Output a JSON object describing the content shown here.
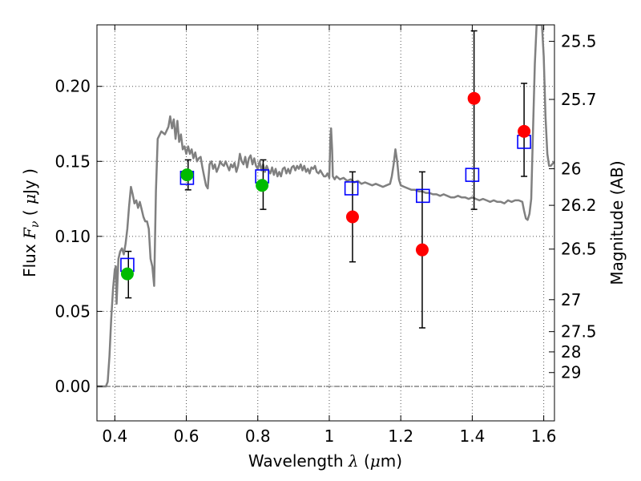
{
  "chart_data": {
    "type": "scatter",
    "title": "",
    "xlabel": "Wavelength  λ (μm)",
    "xlabel_parts": {
      "text": "Wavelength ",
      "lambda": "λ",
      "unit_open": " (",
      "mu": "μ",
      "unit_close": "m)"
    },
    "ylabel": "Flux  Fν  ( μJy )",
    "ylabel_parts": {
      "text": "Flux ",
      "symbol": "F",
      "sub": "ν",
      "open": " ( ",
      "mu": "μ",
      "unit": "Jy )"
    },
    "y2label": "Magnitude (AB)",
    "xlim": [
      0.35,
      1.63
    ],
    "ylim": [
      -0.023,
      0.241
    ],
    "grid": true,
    "x_ticks": [
      0.4,
      0.6,
      0.8,
      1.0,
      1.2,
      1.4,
      1.6
    ],
    "x_tick_labels": [
      "0.4",
      "0.6",
      "0.8",
      "1",
      "1.2",
      "1.4",
      "1.6"
    ],
    "y_ticks": [
      0.0,
      0.05,
      0.1,
      0.15,
      0.2
    ],
    "y_tick_labels": [
      "0.00",
      "0.05",
      "0.10",
      "0.15",
      "0.20"
    ],
    "y2_ticks": [
      {
        "label": "25.5",
        "flux": 0.23
      },
      {
        "label": "25.7",
        "flux": 0.1913
      },
      {
        "label": "26",
        "flux": 0.1451
      },
      {
        "label": "26.2",
        "flux": 0.1207
      },
      {
        "label": "26.5",
        "flux": 0.0915
      },
      {
        "label": "27",
        "flux": 0.0578
      },
      {
        "label": "27.5",
        "flux": 0.0365
      },
      {
        "label": "28",
        "flux": 0.023
      },
      {
        "label": "29",
        "flux": 0.0092
      }
    ],
    "colors": {
      "model": "#808080",
      "open_squares": "#0000ff",
      "green_points": "#00bb00",
      "red_points": "#ff0000",
      "error_bars": "#000000",
      "grid": "#555555"
    },
    "series": [
      {
        "kind": "line",
        "points": [
          [
            0.35,
            0.0
          ],
          [
            0.375,
            0.0
          ],
          [
            0.38,
            0.003
          ],
          [
            0.385,
            0.02
          ],
          [
            0.39,
            0.045
          ],
          [
            0.395,
            0.065
          ],
          [
            0.4,
            0.078
          ],
          [
            0.403,
            0.08
          ],
          [
            0.405,
            0.055
          ],
          [
            0.41,
            0.085
          ],
          [
            0.415,
            0.09
          ],
          [
            0.42,
            0.092
          ],
          [
            0.425,
            0.088
          ],
          [
            0.43,
            0.095
          ],
          [
            0.435,
            0.105
          ],
          [
            0.44,
            0.12
          ],
          [
            0.445,
            0.133
          ],
          [
            0.45,
            0.128
          ],
          [
            0.455,
            0.122
          ],
          [
            0.46,
            0.124
          ],
          [
            0.465,
            0.119
          ],
          [
            0.47,
            0.123
          ],
          [
            0.475,
            0.118
          ],
          [
            0.48,
            0.113
          ],
          [
            0.485,
            0.11
          ],
          [
            0.49,
            0.11
          ],
          [
            0.495,
            0.105
          ],
          [
            0.5,
            0.085
          ],
          [
            0.505,
            0.08
          ],
          [
            0.51,
            0.067
          ],
          [
            0.515,
            0.13
          ],
          [
            0.52,
            0.165
          ],
          [
            0.53,
            0.17
          ],
          [
            0.54,
            0.168
          ],
          [
            0.55,
            0.173
          ],
          [
            0.555,
            0.18
          ],
          [
            0.56,
            0.172
          ],
          [
            0.565,
            0.178
          ],
          [
            0.57,
            0.165
          ],
          [
            0.575,
            0.177
          ],
          [
            0.58,
            0.163
          ],
          [
            0.585,
            0.168
          ],
          [
            0.59,
            0.158
          ],
          [
            0.595,
            0.16
          ],
          [
            0.6,
            0.155
          ],
          [
            0.605,
            0.16
          ],
          [
            0.61,
            0.155
          ],
          [
            0.615,
            0.158
          ],
          [
            0.62,
            0.152
          ],
          [
            0.625,
            0.156
          ],
          [
            0.63,
            0.15
          ],
          [
            0.635,
            0.152
          ],
          [
            0.64,
            0.153
          ],
          [
            0.645,
            0.146
          ],
          [
            0.65,
            0.14
          ],
          [
            0.655,
            0.134
          ],
          [
            0.66,
            0.132
          ],
          [
            0.665,
            0.148
          ],
          [
            0.67,
            0.15
          ],
          [
            0.675,
            0.145
          ],
          [
            0.68,
            0.148
          ],
          [
            0.685,
            0.143
          ],
          [
            0.69,
            0.146
          ],
          [
            0.695,
            0.15
          ],
          [
            0.7,
            0.148
          ],
          [
            0.705,
            0.147
          ],
          [
            0.71,
            0.15
          ],
          [
            0.715,
            0.147
          ],
          [
            0.72,
            0.144
          ],
          [
            0.725,
            0.148
          ],
          [
            0.73,
            0.146
          ],
          [
            0.735,
            0.149
          ],
          [
            0.74,
            0.143
          ],
          [
            0.745,
            0.147
          ],
          [
            0.75,
            0.155
          ],
          [
            0.755,
            0.15
          ],
          [
            0.76,
            0.148
          ],
          [
            0.765,
            0.153
          ],
          [
            0.77,
            0.146
          ],
          [
            0.775,
            0.152
          ],
          [
            0.78,
            0.154
          ],
          [
            0.785,
            0.148
          ],
          [
            0.79,
            0.152
          ],
          [
            0.795,
            0.147
          ],
          [
            0.8,
            0.145
          ],
          [
            0.805,
            0.15
          ],
          [
            0.81,
            0.144
          ],
          [
            0.815,
            0.148
          ],
          [
            0.82,
            0.143
          ],
          [
            0.825,
            0.147
          ],
          [
            0.83,
            0.144
          ],
          [
            0.835,
            0.142
          ],
          [
            0.84,
            0.146
          ],
          [
            0.845,
            0.141
          ],
          [
            0.85,
            0.145
          ],
          [
            0.855,
            0.14
          ],
          [
            0.86,
            0.143
          ],
          [
            0.865,
            0.14
          ],
          [
            0.87,
            0.145
          ],
          [
            0.875,
            0.146
          ],
          [
            0.88,
            0.142
          ],
          [
            0.885,
            0.145
          ],
          [
            0.89,
            0.142
          ],
          [
            0.895,
            0.146
          ],
          [
            0.9,
            0.147
          ],
          [
            0.905,
            0.144
          ],
          [
            0.91,
            0.147
          ],
          [
            0.915,
            0.145
          ],
          [
            0.92,
            0.148
          ],
          [
            0.925,
            0.144
          ],
          [
            0.93,
            0.147
          ],
          [
            0.935,
            0.143
          ],
          [
            0.94,
            0.145
          ],
          [
            0.945,
            0.142
          ],
          [
            0.95,
            0.146
          ],
          [
            0.955,
            0.145
          ],
          [
            0.96,
            0.147
          ],
          [
            0.965,
            0.143
          ],
          [
            0.97,
            0.142
          ],
          [
            0.975,
            0.144
          ],
          [
            0.98,
            0.142
          ],
          [
            0.985,
            0.14
          ],
          [
            0.99,
            0.14
          ],
          [
            0.995,
            0.142
          ],
          [
            1.0,
            0.139
          ],
          [
            1.003,
            0.165
          ],
          [
            1.005,
            0.172
          ],
          [
            1.008,
            0.158
          ],
          [
            1.01,
            0.14
          ],
          [
            1.015,
            0.138
          ],
          [
            1.02,
            0.14
          ],
          [
            1.03,
            0.138
          ],
          [
            1.04,
            0.139
          ],
          [
            1.05,
            0.137
          ],
          [
            1.06,
            0.138
          ],
          [
            1.07,
            0.136
          ],
          [
            1.08,
            0.137
          ],
          [
            1.09,
            0.135
          ],
          [
            1.1,
            0.136
          ],
          [
            1.11,
            0.135
          ],
          [
            1.12,
            0.134
          ],
          [
            1.13,
            0.135
          ],
          [
            1.14,
            0.134
          ],
          [
            1.15,
            0.133
          ],
          [
            1.16,
            0.134
          ],
          [
            1.17,
            0.135
          ],
          [
            1.175,
            0.14
          ],
          [
            1.18,
            0.148
          ],
          [
            1.185,
            0.158
          ],
          [
            1.19,
            0.15
          ],
          [
            1.195,
            0.138
          ],
          [
            1.2,
            0.134
          ],
          [
            1.21,
            0.133
          ],
          [
            1.22,
            0.132
          ],
          [
            1.23,
            0.131
          ],
          [
            1.24,
            0.131
          ],
          [
            1.25,
            0.13
          ],
          [
            1.26,
            0.13
          ],
          [
            1.27,
            0.129
          ],
          [
            1.28,
            0.129
          ],
          [
            1.29,
            0.128
          ],
          [
            1.3,
            0.128
          ],
          [
            1.31,
            0.127
          ],
          [
            1.32,
            0.128
          ],
          [
            1.33,
            0.127
          ],
          [
            1.34,
            0.126
          ],
          [
            1.35,
            0.126
          ],
          [
            1.36,
            0.127
          ],
          [
            1.37,
            0.126
          ],
          [
            1.38,
            0.126
          ],
          [
            1.39,
            0.125
          ],
          [
            1.4,
            0.126
          ],
          [
            1.41,
            0.125
          ],
          [
            1.42,
            0.124
          ],
          [
            1.43,
            0.125
          ],
          [
            1.44,
            0.124
          ],
          [
            1.45,
            0.123
          ],
          [
            1.46,
            0.124
          ],
          [
            1.47,
            0.123
          ],
          [
            1.48,
            0.123
          ],
          [
            1.49,
            0.122
          ],
          [
            1.5,
            0.124
          ],
          [
            1.51,
            0.123
          ],
          [
            1.52,
            0.124
          ],
          [
            1.53,
            0.124
          ],
          [
            1.54,
            0.123
          ],
          [
            1.545,
            0.117
          ],
          [
            1.55,
            0.112
          ],
          [
            1.555,
            0.111
          ],
          [
            1.56,
            0.115
          ],
          [
            1.565,
            0.125
          ],
          [
            1.57,
            0.17
          ],
          [
            1.575,
            0.215
          ],
          [
            1.58,
            0.241
          ],
          [
            1.59,
            0.241
          ],
          [
            1.595,
            0.241
          ],
          [
            1.6,
            0.22
          ],
          [
            1.605,
            0.18
          ],
          [
            1.61,
            0.155
          ],
          [
            1.615,
            0.147
          ],
          [
            1.62,
            0.147
          ],
          [
            1.63,
            0.15
          ]
        ]
      },
      {
        "kind": "open_squares",
        "points": [
          {
            "x": 0.435,
            "y": 0.081
          },
          {
            "x": 0.602,
            "y": 0.139
          },
          {
            "x": 0.812,
            "y": 0.14
          },
          {
            "x": 1.062,
            "y": 0.132
          },
          {
            "x": 1.262,
            "y": 0.127
          },
          {
            "x": 1.4,
            "y": 0.141
          },
          {
            "x": 1.545,
            "y": 0.163
          }
        ]
      },
      {
        "kind": "green_points",
        "points": [
          {
            "x": 0.435,
            "y": 0.075
          },
          {
            "x": 0.602,
            "y": 0.141
          },
          {
            "x": 0.812,
            "y": 0.134
          }
        ]
      },
      {
        "kind": "red_points",
        "points": [
          {
            "x": 1.065,
            "y": 0.113
          },
          {
            "x": 1.26,
            "y": 0.091
          },
          {
            "x": 1.405,
            "y": 0.192
          },
          {
            "x": 1.545,
            "y": 0.17
          }
        ]
      },
      {
        "kind": "error_bars",
        "points": [
          {
            "x": 0.438,
            "lo": 0.059,
            "hi": 0.09
          },
          {
            "x": 0.605,
            "lo": 0.131,
            "hi": 0.151
          },
          {
            "x": 0.815,
            "lo": 0.118,
            "hi": 0.151
          },
          {
            "x": 1.065,
            "lo": 0.083,
            "hi": 0.143
          },
          {
            "x": 1.26,
            "lo": 0.039,
            "hi": 0.143
          },
          {
            "x": 1.405,
            "lo": 0.118,
            "hi": 0.237
          },
          {
            "x": 1.545,
            "lo": 0.14,
            "hi": 0.202
          }
        ]
      }
    ]
  }
}
